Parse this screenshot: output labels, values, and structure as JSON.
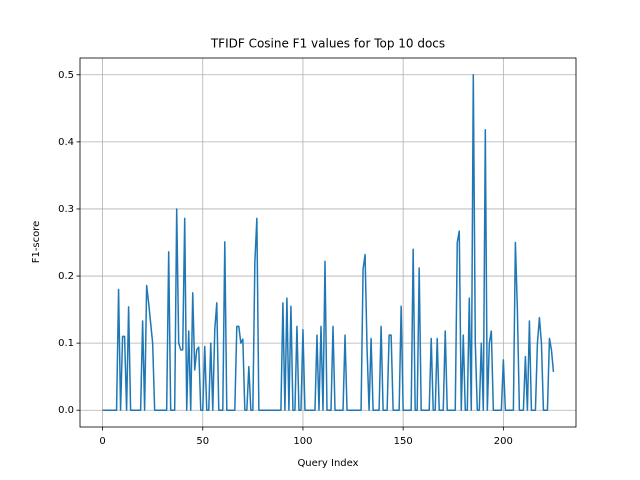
{
  "chart_data": {
    "type": "line",
    "title": "TFIDF Cosine F1 values for Top 10 docs",
    "x_label": "Query Index",
    "y_label": "F1-score",
    "grid": true,
    "xlim": [
      -11.25,
      236.25
    ],
    "ylim": [
      -0.025,
      0.525
    ],
    "xticks": [
      0,
      50,
      100,
      150,
      200
    ],
    "yticks": [
      {
        "value": 0,
        "label": "0.0"
      },
      0.1,
      0.2,
      0.3,
      0.4,
      0.5
    ],
    "series": [
      {
        "color": "#1f77b4",
        "x": [
          0,
          1,
          2,
          3,
          4,
          5,
          6,
          7,
          8,
          9,
          10,
          11,
          12,
          13,
          14,
          15,
          16,
          17,
          18,
          19,
          20,
          21,
          22,
          23,
          24,
          25,
          26,
          27,
          28,
          29,
          30,
          31,
          32,
          33,
          34,
          35,
          36,
          37,
          38,
          39,
          40,
          41,
          42,
          43,
          44,
          45,
          46,
          47,
          48,
          49,
          50,
          51,
          52,
          53,
          54,
          55,
          56,
          57,
          58,
          59,
          60,
          61,
          62,
          63,
          64,
          65,
          66,
          67,
          68,
          69,
          70,
          71,
          72,
          73,
          74,
          75,
          76,
          77,
          78,
          79,
          80,
          81,
          82,
          83,
          84,
          85,
          86,
          87,
          88,
          89,
          90,
          91,
          92,
          93,
          94,
          95,
          96,
          97,
          98,
          99,
          100,
          101,
          102,
          103,
          104,
          105,
          106,
          107,
          108,
          109,
          110,
          111,
          112,
          113,
          114,
          115,
          116,
          117,
          118,
          119,
          120,
          121,
          122,
          123,
          124,
          125,
          126,
          127,
          128,
          129,
          130,
          131,
          132,
          133,
          134,
          135,
          136,
          137,
          138,
          139,
          140,
          141,
          142,
          143,
          144,
          145,
          146,
          147,
          148,
          149,
          150,
          151,
          152,
          153,
          154,
          155,
          156,
          157,
          158,
          159,
          160,
          161,
          162,
          163,
          164,
          165,
          166,
          167,
          168,
          169,
          170,
          171,
          172,
          173,
          174,
          175,
          176,
          177,
          178,
          179,
          180,
          181,
          182,
          183,
          184,
          185,
          186,
          187,
          188,
          189,
          190,
          191,
          192,
          193,
          194,
          195,
          196,
          197,
          198,
          199,
          200,
          201,
          202,
          203,
          204,
          205,
          206,
          207,
          208,
          209,
          210,
          211,
          212,
          213,
          214,
          215,
          216,
          217,
          218,
          219,
          220,
          221,
          222,
          223,
          224,
          225
        ],
        "values": [
          0,
          0,
          0,
          0,
          0,
          0,
          0,
          0,
          0.18,
          0,
          0.11,
          0.11,
          0,
          0.154,
          0,
          0,
          0,
          0,
          0,
          0,
          0.133,
          0,
          0.186,
          0.16,
          0.13,
          0.1,
          0,
          0,
          0,
          0,
          0,
          0,
          0,
          0.236,
          0,
          0,
          0,
          0.3,
          0.1,
          0.09,
          0.09,
          0.286,
          0,
          0.118,
          0,
          0.175,
          0.06,
          0.09,
          0.094,
          0,
          0,
          0.095,
          0,
          0,
          0.1,
          0,
          0.12,
          0.16,
          0,
          0,
          0,
          0.251,
          0,
          0,
          0,
          0,
          0,
          0.125,
          0.125,
          0.1,
          0.106,
          0,
          0,
          0.065,
          0,
          0,
          0.22,
          0.286,
          0,
          0,
          0,
          0,
          0,
          0,
          0,
          0,
          0,
          0,
          0,
          0,
          0.16,
          0,
          0.167,
          0,
          0.155,
          0,
          0,
          0.125,
          0,
          0,
          0.12,
          0,
          0,
          0,
          0,
          0,
          0,
          0.112,
          0,
          0.125,
          0,
          0.222,
          0,
          0,
          0,
          0.125,
          0,
          0,
          0,
          0,
          0,
          0.112,
          0,
          0,
          0,
          0,
          0,
          0,
          0,
          0,
          0.21,
          0.232,
          0.09,
          0,
          0.107,
          0,
          0,
          0,
          0,
          0.125,
          0,
          0,
          0,
          0.112,
          0.112,
          0,
          0,
          0,
          0,
          0.155,
          0,
          0,
          0,
          0,
          0,
          0.24,
          0,
          0,
          0.212,
          0,
          0,
          0,
          0,
          0,
          0.107,
          0,
          0,
          0.107,
          0,
          0,
          0,
          0.118,
          0,
          0,
          0,
          0,
          0,
          0.25,
          0.267,
          0,
          0.112,
          0,
          0,
          0.167,
          0,
          0.5,
          0.1,
          0,
          0,
          0.1,
          0,
          0.418,
          0,
          0.1,
          0.118,
          0,
          0,
          0,
          0,
          0,
          0.075,
          0,
          0,
          0,
          0,
          0,
          0.25,
          0.15,
          0,
          0,
          0,
          0.08,
          0,
          0.133,
          0,
          0,
          0,
          0.1,
          0.138,
          0.1,
          0,
          0,
          0,
          0.107,
          0.09,
          0.057
        ]
      }
    ]
  }
}
